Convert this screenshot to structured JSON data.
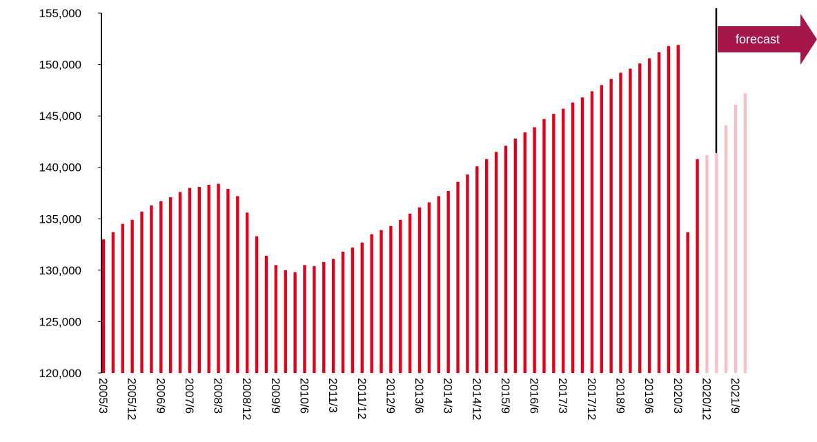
{
  "chart_data": {
    "type": "bar",
    "categories": [
      "2005/3",
      null,
      null,
      "2005/12",
      null,
      null,
      "2006/9",
      null,
      null,
      "2007/6",
      null,
      null,
      "2008/3",
      null,
      null,
      "2008/12",
      null,
      null,
      "2009/9",
      null,
      null,
      "2010/6",
      null,
      null,
      "2011/3",
      null,
      null,
      "2011/12",
      null,
      null,
      "2012/9",
      null,
      null,
      "2013/6",
      null,
      null,
      "2014/3",
      null,
      null,
      "2014/12",
      null,
      null,
      "2015/9",
      null,
      null,
      "2016/6",
      null,
      null,
      "2017/3",
      null,
      null,
      "2017/12",
      null,
      null,
      "2018/9",
      null,
      null,
      "2019/6",
      null,
      null,
      "2020/3",
      null,
      null,
      "2020/12",
      null,
      null,
      "2021/9",
      null
    ],
    "values": [
      133000,
      133700,
      134500,
      134900,
      135700,
      136300,
      136700,
      137100,
      137600,
      138000,
      138100,
      138300,
      138400,
      137900,
      137200,
      135600,
      133300,
      131400,
      130500,
      130000,
      129800,
      130500,
      130400,
      130800,
      131100,
      131800,
      132200,
      132700,
      133500,
      133900,
      134300,
      134900,
      135500,
      136100,
      136600,
      137200,
      137700,
      138600,
      139300,
      140100,
      140800,
      141500,
      142100,
      142800,
      143400,
      143900,
      144700,
      145200,
      145700,
      146300,
      146800,
      147400,
      148000,
      148600,
      149200,
      149600,
      150100,
      150600,
      151200,
      151800,
      151900,
      133700,
      140800,
      141200,
      141400,
      144100,
      146100,
      147200
    ],
    "colors": [
      "#e3001b",
      "#e3001b",
      "#e3001b",
      "#e3001b",
      "#e3001b",
      "#e3001b",
      "#e3001b",
      "#e3001b",
      "#e3001b",
      "#e3001b",
      "#e3001b",
      "#e3001b",
      "#e3001b",
      "#e3001b",
      "#e3001b",
      "#e3001b",
      "#e3001b",
      "#e3001b",
      "#e3001b",
      "#e3001b",
      "#e3001b",
      "#e3001b",
      "#e3001b",
      "#e3001b",
      "#e3001b",
      "#e3001b",
      "#e3001b",
      "#e3001b",
      "#e3001b",
      "#e3001b",
      "#e3001b",
      "#e3001b",
      "#e3001b",
      "#e3001b",
      "#e3001b",
      "#e3001b",
      "#e3001b",
      "#e3001b",
      "#e3001b",
      "#e3001b",
      "#e3001b",
      "#e3001b",
      "#e3001b",
      "#e3001b",
      "#e3001b",
      "#e3001b",
      "#e3001b",
      "#e3001b",
      "#e3001b",
      "#e3001b",
      "#e3001b",
      "#e3001b",
      "#e3001b",
      "#e3001b",
      "#e3001b",
      "#e3001b",
      "#e3001b",
      "#e3001b",
      "#e3001b",
      "#e3001b",
      "#e3001b",
      "#e3001b",
      "#e3001b",
      "#f4c2c6",
      "#f4c2c6",
      "#f4c2c6",
      "#f4c2c6",
      "#f4c2c6"
    ],
    "ylim": [
      120000,
      155000
    ],
    "yticks": [
      {
        "value": 120000,
        "label": "120,000"
      },
      {
        "value": 125000,
        "label": "125,000"
      },
      {
        "value": 130000,
        "label": "130,000"
      },
      {
        "value": 135000,
        "label": "135,000"
      },
      {
        "value": 140000,
        "label": "140,000"
      },
      {
        "value": 145000,
        "label": "145,000"
      },
      {
        "value": 150000,
        "label": "150,000"
      },
      {
        "value": 155000,
        "label": "155,000"
      }
    ],
    "annotation": "forecast"
  }
}
